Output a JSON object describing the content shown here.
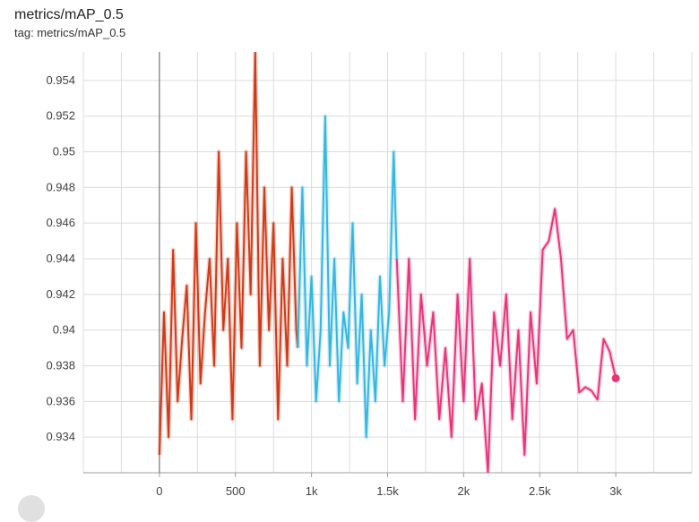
{
  "card": {
    "title": "metrics/mAP_0.5",
    "tag": "tag: metrics/mAP_0.5"
  },
  "chart_data": {
    "type": "line",
    "title": "metrics/mAP_0.5",
    "xlabel": "",
    "ylabel": "",
    "xlim": [
      -500,
      3500
    ],
    "ylim": [
      0.932,
      0.9556
    ],
    "x_ticks": [
      0,
      500,
      1000,
      1500,
      2000,
      2500,
      3000
    ],
    "x_tick_labels": [
      "0",
      "500",
      "1k",
      "1.5k",
      "2k",
      "2.5k",
      "3k"
    ],
    "y_ticks": [
      0.934,
      0.936,
      0.938,
      0.94,
      0.942,
      0.944,
      0.946,
      0.948,
      0.95,
      0.952,
      0.954
    ],
    "y_tick_labels": [
      "0.934",
      "0.936",
      "0.938",
      "0.94",
      "0.942",
      "0.944",
      "0.946",
      "0.948",
      "0.95",
      "0.952",
      "0.954"
    ],
    "grid": true,
    "colors": {
      "run1": "#d03a17",
      "run2": "#34b6e2",
      "run3": "#e8357a",
      "grid": "#dcdcdc",
      "axis": "#9e9e9e"
    },
    "series": [
      {
        "key": "run1",
        "x": [
          0,
          30,
          60,
          90,
          120,
          150,
          180,
          210,
          240,
          270,
          300,
          330,
          360,
          390,
          420,
          450,
          480,
          510,
          540,
          570,
          600,
          630,
          660,
          690,
          720,
          750,
          780,
          810,
          840,
          870,
          900,
          910
        ],
        "y": [
          0.933,
          0.941,
          0.934,
          0.9445,
          0.936,
          0.9395,
          0.9425,
          0.935,
          0.946,
          0.937,
          0.941,
          0.944,
          0.938,
          0.95,
          0.94,
          0.944,
          0.935,
          0.946,
          0.939,
          0.95,
          0.942,
          0.9556,
          0.938,
          0.948,
          0.94,
          0.946,
          0.935,
          0.944,
          0.938,
          0.948,
          0.94,
          0.939
        ]
      },
      {
        "key": "run2",
        "x": [
          910,
          940,
          970,
          1000,
          1030,
          1060,
          1090,
          1120,
          1150,
          1180,
          1210,
          1240,
          1270,
          1300,
          1330,
          1360,
          1390,
          1420,
          1450,
          1480,
          1510,
          1540,
          1560
        ],
        "y": [
          0.939,
          0.948,
          0.938,
          0.943,
          0.936,
          0.94,
          0.952,
          0.938,
          0.944,
          0.936,
          0.941,
          0.939,
          0.946,
          0.937,
          0.942,
          0.934,
          0.94,
          0.936,
          0.943,
          0.938,
          0.941,
          0.95,
          0.944
        ]
      },
      {
        "key": "run3",
        "x": [
          1560,
          1600,
          1640,
          1680,
          1720,
          1760,
          1800,
          1840,
          1880,
          1920,
          1960,
          2000,
          2040,
          2080,
          2120,
          2160,
          2200,
          2240,
          2280,
          2320,
          2360,
          2400,
          2440,
          2480,
          2520,
          2560,
          2600,
          2640,
          2680,
          2720,
          2760,
          2800,
          2840,
          2880,
          2920,
          2960,
          3000
        ],
        "y": [
          0.944,
          0.936,
          0.944,
          0.935,
          0.942,
          0.938,
          0.941,
          0.935,
          0.939,
          0.934,
          0.942,
          0.936,
          0.944,
          0.935,
          0.937,
          0.932,
          0.941,
          0.938,
          0.942,
          0.935,
          0.94,
          0.933,
          0.941,
          0.937,
          0.9445,
          0.945,
          0.9468,
          0.944,
          0.9395,
          0.94,
          0.9365,
          0.9368,
          0.9366,
          0.9361,
          0.9395,
          0.9388,
          0.9373
        ]
      }
    ],
    "highlight_point": {
      "series": "run3",
      "x": 3000,
      "y": 0.9373
    }
  }
}
